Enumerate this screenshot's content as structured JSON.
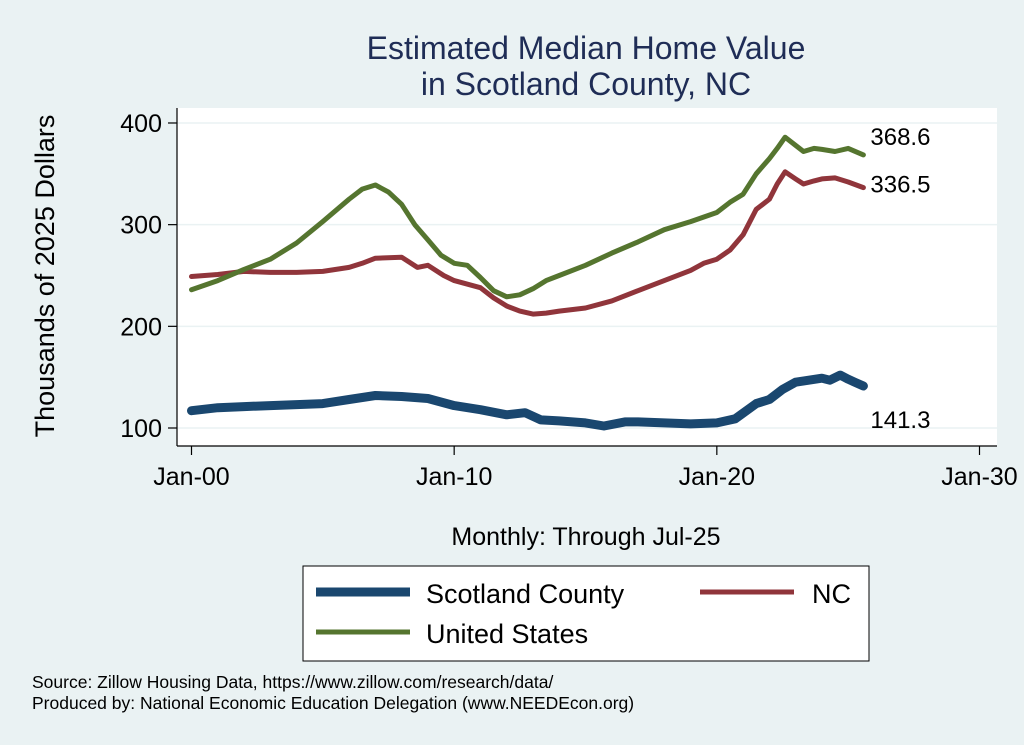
{
  "colors": {
    "scotland": "#1a476f",
    "nc": "#90353b",
    "us": "#55752f",
    "title": "#1f2d56",
    "background": "#eaf2f3",
    "plot_background": "#ffffff",
    "grid": "#eaf2f3"
  },
  "chart_data": {
    "type": "line",
    "title": [
      "Estimated Median Home Value",
      "in Scotland County, NC"
    ],
    "xlabel": "Monthly: Through Jul-25",
    "ylabel": "Thousands of 2025 Dollars",
    "x_ticks": [
      "Jan-00",
      "Jan-10",
      "Jan-20",
      "Jan-30"
    ],
    "x_tick_years": [
      2000,
      2010,
      2020,
      2030
    ],
    "y_ticks": [
      100,
      200,
      300,
      400
    ],
    "xlim": [
      2000,
      2030
    ],
    "ylim": [
      90,
      415
    ],
    "grid": true,
    "legend_position": "bottom",
    "series": [
      {
        "key": "scotland",
        "name": "Scotland County",
        "end_label": "141.3",
        "points": [
          [
            2000.0,
            117
          ],
          [
            2001.0,
            120
          ],
          [
            2002.0,
            121
          ],
          [
            2003.0,
            122
          ],
          [
            2004.0,
            123
          ],
          [
            2005.0,
            124
          ],
          [
            2006.0,
            128
          ],
          [
            2007.0,
            132
          ],
          [
            2008.0,
            131
          ],
          [
            2009.0,
            129
          ],
          [
            2010.0,
            122
          ],
          [
            2011.0,
            118
          ],
          [
            2012.0,
            113
          ],
          [
            2012.7,
            115
          ],
          [
            2013.3,
            108
          ],
          [
            2014.0,
            107
          ],
          [
            2015.0,
            105
          ],
          [
            2015.7,
            102
          ],
          [
            2016.5,
            106
          ],
          [
            2017.0,
            106
          ],
          [
            2018.0,
            105
          ],
          [
            2019.0,
            104
          ],
          [
            2020.0,
            105
          ],
          [
            2020.7,
            109
          ],
          [
            2021.5,
            124
          ],
          [
            2022.0,
            128
          ],
          [
            2022.5,
            138
          ],
          [
            2023.0,
            145
          ],
          [
            2023.5,
            147
          ],
          [
            2024.0,
            149
          ],
          [
            2024.3,
            147
          ],
          [
            2024.7,
            152
          ],
          [
            2025.0,
            148
          ],
          [
            2025.25,
            145
          ],
          [
            2025.58,
            141.3
          ]
        ]
      },
      {
        "key": "nc",
        "name": "NC",
        "end_label": "336.5",
        "points": [
          [
            2000.0,
            249
          ],
          [
            2001.0,
            251
          ],
          [
            2002.0,
            254
          ],
          [
            2003.0,
            253
          ],
          [
            2004.0,
            253
          ],
          [
            2005.0,
            254
          ],
          [
            2006.0,
            258
          ],
          [
            2006.5,
            262
          ],
          [
            2007.0,
            267
          ],
          [
            2008.0,
            268
          ],
          [
            2008.6,
            258
          ],
          [
            2009.0,
            260
          ],
          [
            2009.6,
            250
          ],
          [
            2010.0,
            245
          ],
          [
            2011.0,
            238
          ],
          [
            2011.5,
            228
          ],
          [
            2012.0,
            220
          ],
          [
            2012.5,
            215
          ],
          [
            2013.0,
            212
          ],
          [
            2013.5,
            213
          ],
          [
            2014.0,
            215
          ],
          [
            2015.0,
            218
          ],
          [
            2016.0,
            225
          ],
          [
            2017.0,
            235
          ],
          [
            2018.0,
            245
          ],
          [
            2019.0,
            255
          ],
          [
            2019.5,
            262
          ],
          [
            2020.0,
            266
          ],
          [
            2020.5,
            275
          ],
          [
            2021.0,
            290
          ],
          [
            2021.5,
            315
          ],
          [
            2022.0,
            325
          ],
          [
            2022.3,
            340
          ],
          [
            2022.6,
            352
          ],
          [
            2023.0,
            345
          ],
          [
            2023.3,
            340
          ],
          [
            2023.7,
            343
          ],
          [
            2024.0,
            345
          ],
          [
            2024.5,
            346
          ],
          [
            2025.0,
            342
          ],
          [
            2025.58,
            336.5
          ]
        ]
      },
      {
        "key": "us",
        "name": "United States",
        "end_label": "368.6",
        "points": [
          [
            2000.0,
            236
          ],
          [
            2001.0,
            245
          ],
          [
            2002.0,
            256
          ],
          [
            2003.0,
            266
          ],
          [
            2004.0,
            282
          ],
          [
            2005.0,
            303
          ],
          [
            2006.0,
            325
          ],
          [
            2006.5,
            335
          ],
          [
            2007.0,
            339
          ],
          [
            2007.5,
            332
          ],
          [
            2008.0,
            320
          ],
          [
            2008.5,
            300
          ],
          [
            2009.0,
            285
          ],
          [
            2009.5,
            270
          ],
          [
            2010.0,
            262
          ],
          [
            2010.5,
            260
          ],
          [
            2011.0,
            248
          ],
          [
            2011.5,
            235
          ],
          [
            2012.0,
            229
          ],
          [
            2012.5,
            231
          ],
          [
            2013.0,
            237
          ],
          [
            2013.5,
            245
          ],
          [
            2014.0,
            250
          ],
          [
            2015.0,
            260
          ],
          [
            2016.0,
            272
          ],
          [
            2017.0,
            283
          ],
          [
            2018.0,
            295
          ],
          [
            2019.0,
            303
          ],
          [
            2020.0,
            312
          ],
          [
            2020.5,
            322
          ],
          [
            2021.0,
            330
          ],
          [
            2021.5,
            350
          ],
          [
            2022.0,
            365
          ],
          [
            2022.3,
            375
          ],
          [
            2022.6,
            386
          ],
          [
            2023.0,
            378
          ],
          [
            2023.3,
            372
          ],
          [
            2023.7,
            375
          ],
          [
            2024.0,
            374
          ],
          [
            2024.5,
            372
          ],
          [
            2025.0,
            375
          ],
          [
            2025.58,
            368.6
          ]
        ]
      }
    ]
  },
  "footer": {
    "source": "Source: Zillow Housing Data, https://www.zillow.com/research/data/",
    "produced": "Produced by: National Economic Education Delegation (www.NEEDEcon.org)"
  }
}
